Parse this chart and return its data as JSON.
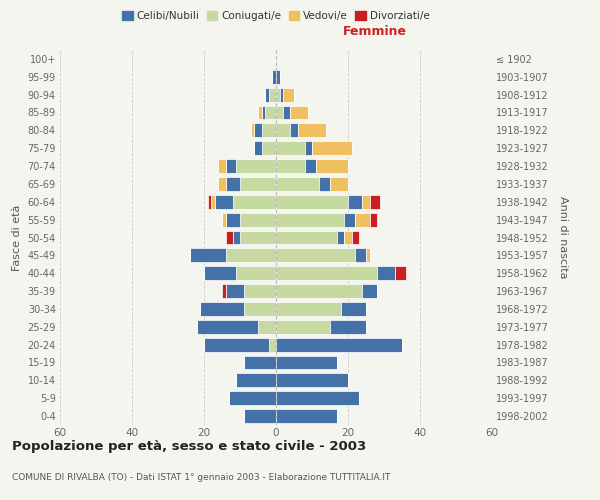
{
  "age_groups": [
    "0-4",
    "5-9",
    "10-14",
    "15-19",
    "20-24",
    "25-29",
    "30-34",
    "35-39",
    "40-44",
    "45-49",
    "50-54",
    "55-59",
    "60-64",
    "65-69",
    "70-74",
    "75-79",
    "80-84",
    "85-89",
    "90-94",
    "95-99",
    "100+"
  ],
  "birth_years": [
    "1998-2002",
    "1993-1997",
    "1988-1992",
    "1983-1987",
    "1978-1982",
    "1973-1977",
    "1968-1972",
    "1963-1967",
    "1958-1962",
    "1953-1957",
    "1948-1952",
    "1943-1947",
    "1938-1942",
    "1933-1937",
    "1928-1932",
    "1923-1927",
    "1918-1922",
    "1913-1917",
    "1908-1912",
    "1903-1907",
    "≤ 1902"
  ],
  "male": {
    "celibi": [
      9,
      13,
      11,
      9,
      18,
      17,
      12,
      5,
      9,
      10,
      2,
      4,
      5,
      4,
      3,
      2,
      2,
      1,
      1,
      1,
      0
    ],
    "coniugati": [
      0,
      0,
      0,
      0,
      2,
      5,
      9,
      9,
      11,
      14,
      10,
      10,
      12,
      10,
      11,
      4,
      4,
      3,
      2,
      0,
      0
    ],
    "vedovi": [
      0,
      0,
      0,
      0,
      0,
      0,
      0,
      0,
      0,
      0,
      0,
      1,
      1,
      2,
      2,
      0,
      1,
      1,
      0,
      0,
      0
    ],
    "divorziati": [
      0,
      0,
      0,
      0,
      0,
      0,
      0,
      1,
      0,
      0,
      2,
      0,
      1,
      0,
      0,
      0,
      0,
      0,
      0,
      0,
      0
    ]
  },
  "female": {
    "nubili": [
      17,
      23,
      20,
      17,
      35,
      10,
      7,
      4,
      5,
      3,
      2,
      3,
      4,
      3,
      3,
      2,
      2,
      2,
      1,
      1,
      0
    ],
    "coniugate": [
      0,
      0,
      0,
      0,
      0,
      15,
      18,
      24,
      28,
      22,
      17,
      19,
      20,
      12,
      8,
      8,
      4,
      2,
      1,
      0,
      0
    ],
    "vedove": [
      0,
      0,
      0,
      0,
      0,
      0,
      0,
      0,
      0,
      1,
      2,
      4,
      2,
      5,
      9,
      11,
      8,
      5,
      3,
      0,
      0
    ],
    "divorziate": [
      0,
      0,
      0,
      0,
      0,
      0,
      0,
      0,
      3,
      0,
      2,
      2,
      3,
      0,
      0,
      0,
      0,
      0,
      0,
      0,
      0
    ]
  },
  "colors": {
    "celibi_nubili": "#4472a8",
    "coniugati": "#c5d9a0",
    "vedovi": "#f0c060",
    "divorziati": "#c82020"
  },
  "xlim": 60,
  "title": "Popolazione per età, sesso e stato civile - 2003",
  "subtitle": "COMUNE DI RIVALBA (TO) - Dati ISTAT 1° gennaio 2003 - Elaborazione TUTTITALIA.IT",
  "ylabel_left": "Fasce di età",
  "ylabel_right": "Anni di nascita",
  "xlabel_right": "Femmine",
  "bg_color": "#f5f5f0"
}
